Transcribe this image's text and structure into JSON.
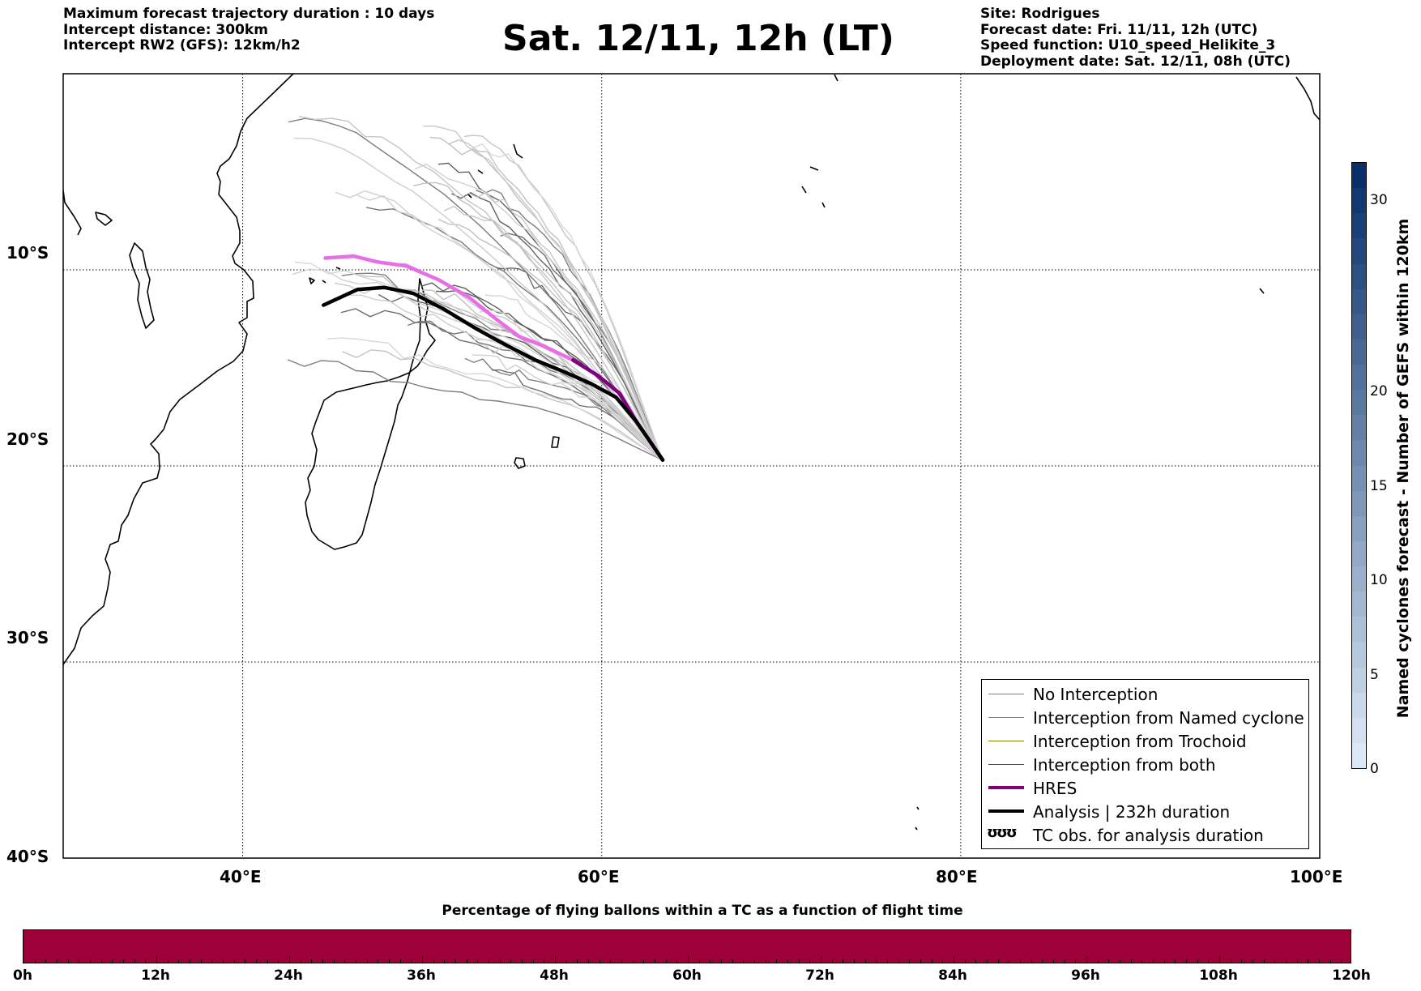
{
  "header_left": [
    "Maximum forecast trajectory duration : 10 days",
    "Intercept distance: 300km",
    "Intercept RW2 (GFS):  12km/h2"
  ],
  "header_right": [
    "Site: Rodrigues",
    "Forecast date: Fri. 11/11, 12h (UTC)",
    "Speed function: U10_speed_Helikite_3",
    "Deployment date: Sat. 12/11, 08h (UTC)"
  ],
  "title": "Sat. 12/11, 12h (LT)",
  "map": {
    "lon_range": [
      30,
      100
    ],
    "lat_range": [
      -40,
      0
    ],
    "lon_ticks": [
      {
        "value": 40,
        "label": "40°E"
      },
      {
        "value": 60,
        "label": "60°E"
      },
      {
        "value": 80,
        "label": "80°E"
      },
      {
        "value": 100,
        "label": "100°E"
      }
    ],
    "lat_ticks": [
      {
        "value": -10,
        "label": "10°S"
      },
      {
        "value": -20,
        "label": "20°S"
      },
      {
        "value": -30,
        "label": "30°S"
      },
      {
        "value": -40,
        "label": "40°S"
      }
    ],
    "deployment_site": {
      "name": "Rodrigues",
      "lon": 63.4,
      "lat": -19.7
    },
    "hres_track": [
      [
        63.4,
        -19.7
      ],
      [
        62.8,
        -18.9
      ],
      [
        61.9,
        -17.7
      ],
      [
        61.0,
        -16.3
      ],
      [
        59.8,
        -15.4
      ],
      [
        58.4,
        -14.6
      ],
      [
        56.8,
        -13.9
      ],
      [
        55.4,
        -13.4
      ],
      [
        54.1,
        -12.5
      ],
      [
        52.6,
        -11.4
      ],
      [
        50.9,
        -10.5
      ],
      [
        49.1,
        -9.8
      ],
      [
        47.5,
        -9.6
      ],
      [
        46.2,
        -9.3
      ],
      [
        44.6,
        -9.4
      ]
    ],
    "analysis_track": [
      [
        63.4,
        -19.7
      ],
      [
        62.8,
        -18.9
      ],
      [
        61.9,
        -17.7
      ],
      [
        60.8,
        -16.5
      ],
      [
        59.4,
        -15.8
      ],
      [
        57.9,
        -15.2
      ],
      [
        56.3,
        -14.6
      ],
      [
        54.6,
        -13.8
      ],
      [
        53.0,
        -13.0
      ],
      [
        51.2,
        -12.0
      ],
      [
        49.5,
        -11.2
      ],
      [
        47.9,
        -10.9
      ],
      [
        46.4,
        -11.0
      ],
      [
        44.5,
        -11.8
      ]
    ]
  },
  "legend": [
    {
      "label": "No Interception",
      "color": "#7f7f7f"
    },
    {
      "label": "Interception from Named cyclone",
      "color": "#e8601c"
    },
    {
      "label": "Interception from Trochoid",
      "color": "#808000"
    },
    {
      "label": "Interception from both",
      "color": "#008000"
    },
    {
      "label": "HRES",
      "color": "#800080"
    },
    {
      "label": "Analysis | 232h duration",
      "color": "#000000"
    },
    {
      "label": "TC obs. for analysis duration",
      "symbol": "ʊʊʊ"
    }
  ],
  "cyclone_colorbar": {
    "label": "Named cyclones forecast - Number of GEFS within 120km",
    "min": 0,
    "max": 33,
    "ticks": [
      "0",
      "5",
      "10",
      "15",
      "20",
      "30"
    ],
    "tick_values": [
      0,
      5,
      10,
      15,
      20,
      30
    ],
    "color_low": "#dbe8f6",
    "color_high": "#08306b"
  },
  "percentage_bar": {
    "title": "Percentage of flying ballons within a TC as a function of flight time",
    "ticks": [
      "0h",
      "12h",
      "24h",
      "36h",
      "48h",
      "60h",
      "72h",
      "84h",
      "96h",
      "108h",
      "120h"
    ],
    "fill_color": "#9e003a"
  }
}
